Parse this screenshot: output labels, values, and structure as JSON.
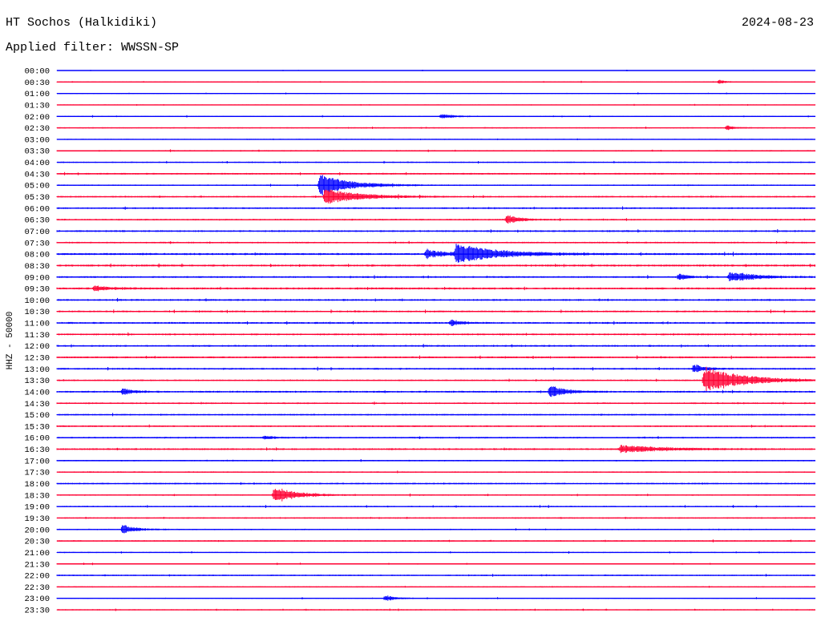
{
  "header": {
    "station": "HT Sochos (Halkidiki)",
    "date": "2024-08-23",
    "filter": "Applied filter: WWSSN-SP"
  },
  "axis": {
    "ylabel": "HHZ - 50000"
  },
  "colors": {
    "even_trace": "#0000ff",
    "odd_trace": "#ff0033",
    "text": "#000000",
    "background": "#ffffff"
  },
  "chart_data": {
    "type": "line",
    "title": "HT Sochos (Halkidiki)",
    "subtitle": "Applied filter: WWSSN-SP",
    "xlabel": "",
    "ylabel": "HHZ - 50000",
    "grid": false,
    "legend": "none",
    "x_span_minutes_per_row": 30,
    "row_labels": [
      "00:00",
      "00:30",
      "01:00",
      "01:30",
      "02:00",
      "02:30",
      "03:00",
      "03:30",
      "04:00",
      "04:30",
      "05:00",
      "05:30",
      "06:00",
      "06:30",
      "07:00",
      "07:30",
      "08:00",
      "08:30",
      "09:00",
      "09:30",
      "10:00",
      "10:30",
      "11:00",
      "11:30",
      "12:00",
      "12:30",
      "13:00",
      "13:30",
      "14:00",
      "14:30",
      "15:00",
      "15:30",
      "16:00",
      "16:30",
      "17:00",
      "17:30",
      "18:00",
      "18:30",
      "19:00",
      "19:30",
      "20:00",
      "20:30",
      "21:00",
      "21:30",
      "22:00",
      "22:30",
      "23:00",
      "23:30"
    ],
    "row_noise": [
      0.35,
      0.45,
      0.45,
      0.4,
      0.5,
      0.5,
      0.45,
      0.6,
      0.55,
      0.7,
      0.6,
      0.7,
      0.75,
      0.7,
      0.8,
      0.7,
      0.9,
      0.9,
      0.8,
      0.9,
      0.8,
      0.8,
      0.8,
      0.8,
      0.8,
      0.8,
      0.8,
      0.7,
      0.8,
      0.7,
      0.7,
      0.7,
      0.7,
      0.8,
      0.6,
      0.6,
      0.7,
      0.6,
      0.6,
      0.6,
      0.6,
      0.6,
      0.5,
      0.5,
      0.6,
      0.5,
      0.5,
      0.5
    ],
    "events": [
      {
        "row": 10,
        "minute": 10.4,
        "amplitude": 14,
        "duration_min": 1.4
      },
      {
        "row": 11,
        "minute": 10.6,
        "amplitude": 10,
        "duration_min": 1.6
      },
      {
        "row": 13,
        "minute": 17.8,
        "amplitude": 6,
        "duration_min": 0.6
      },
      {
        "row": 16,
        "minute": 15.8,
        "amplitude": 12,
        "duration_min": 2.0
      },
      {
        "row": 16,
        "minute": 14.6,
        "amplitude": 5,
        "duration_min": 1.2
      },
      {
        "row": 18,
        "minute": 26.6,
        "amplitude": 7,
        "duration_min": 1.2
      },
      {
        "row": 18,
        "minute": 24.6,
        "amplitude": 4,
        "duration_min": 0.5
      },
      {
        "row": 22,
        "minute": 15.6,
        "amplitude": 4,
        "duration_min": 0.5
      },
      {
        "row": 26,
        "minute": 25.2,
        "amplitude": 6,
        "duration_min": 0.5
      },
      {
        "row": 27,
        "minute": 25.6,
        "amplitude": 18,
        "duration_min": 1.8
      },
      {
        "row": 28,
        "minute": 19.5,
        "amplitude": 8,
        "duration_min": 0.7
      },
      {
        "row": 28,
        "minute": 2.6,
        "amplitude": 4,
        "duration_min": 0.5
      },
      {
        "row": 33,
        "minute": 22.3,
        "amplitude": 5,
        "duration_min": 2.0
      },
      {
        "row": 37,
        "minute": 8.6,
        "amplitude": 11,
        "duration_min": 1.0
      },
      {
        "row": 40,
        "minute": 2.6,
        "amplitude": 6,
        "duration_min": 0.6
      },
      {
        "row": 46,
        "minute": 13.0,
        "amplitude": 4,
        "duration_min": 0.5
      },
      {
        "row": 1,
        "minute": 26.2,
        "amplitude": 3,
        "duration_min": 0.3
      },
      {
        "row": 4,
        "minute": 15.2,
        "amplitude": 3,
        "duration_min": 0.6
      },
      {
        "row": 5,
        "minute": 26.5,
        "amplitude": 3,
        "duration_min": 0.4
      },
      {
        "row": 19,
        "minute": 1.5,
        "amplitude": 3,
        "duration_min": 0.8
      },
      {
        "row": 32,
        "minute": 8.2,
        "amplitude": 2,
        "duration_min": 0.6
      }
    ]
  }
}
